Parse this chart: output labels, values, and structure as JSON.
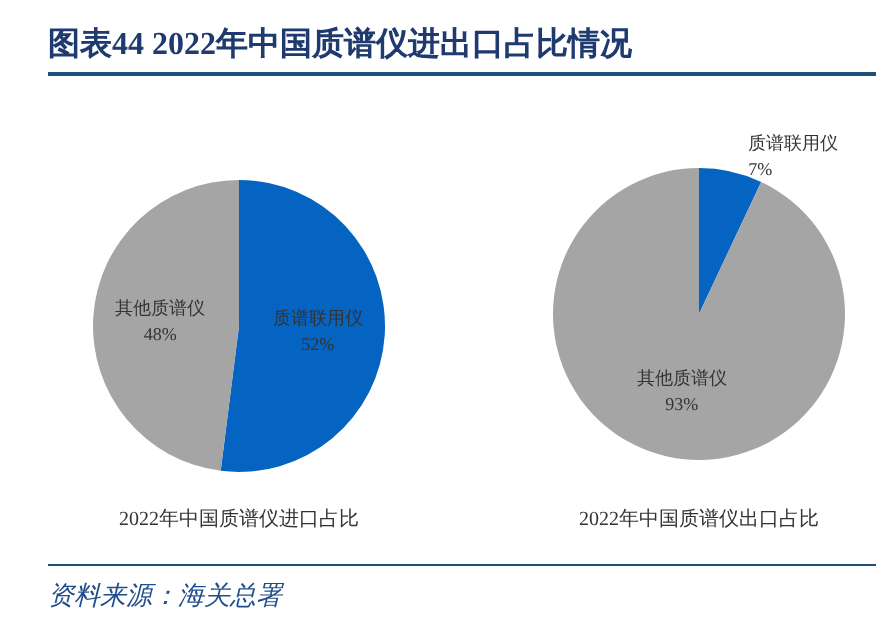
{
  "chart_data": [
    {
      "type": "pie",
      "title": "图表44 2022年中国质谱仪进出口占比情况",
      "subtitle": "2022年中国质谱仪进口占比",
      "categories": [
        "质谱联用仪",
        "其他质谱仪"
      ],
      "values": [
        52,
        48
      ],
      "value_labels": [
        "52%",
        "48%"
      ],
      "colors": [
        "#0563c1",
        "#a5a5a5"
      ],
      "annotations": [
        "资料来源：海关总署"
      ]
    },
    {
      "type": "pie",
      "subtitle": "2022年中国质谱仪出口占比",
      "categories": [
        "质谱联用仪",
        "其他质谱仪"
      ],
      "values": [
        7,
        93
      ],
      "value_labels": [
        "7%",
        "93%"
      ],
      "colors": [
        "#0563c1",
        "#a5a5a5"
      ]
    }
  ]
}
